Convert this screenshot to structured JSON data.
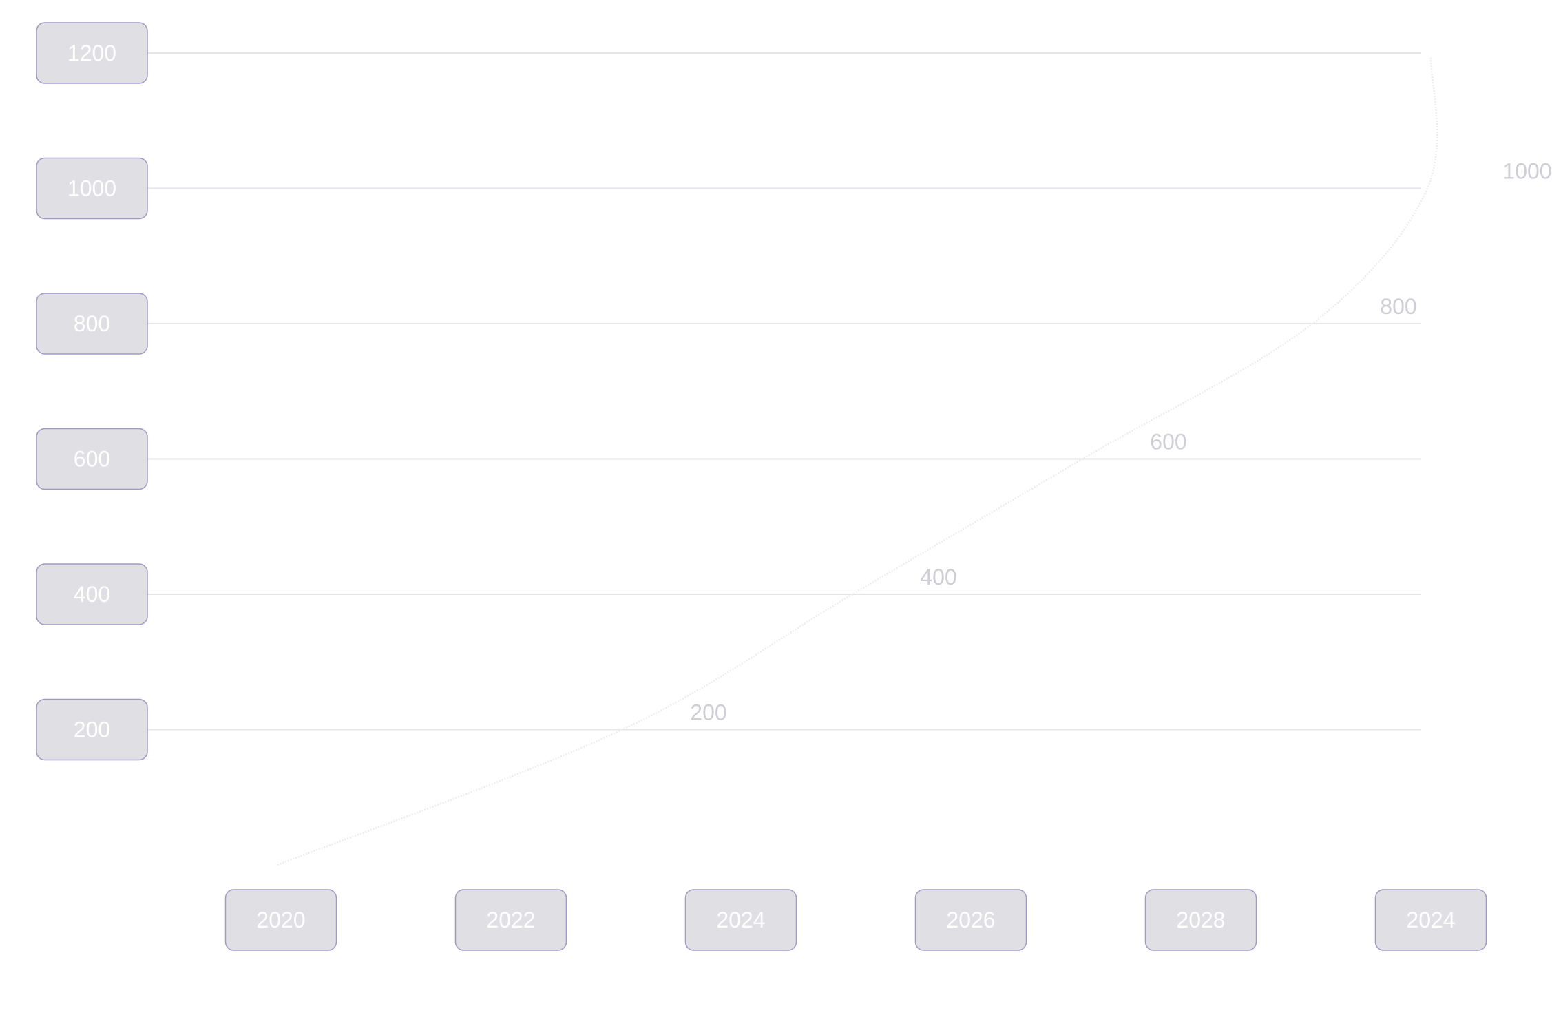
{
  "chart_data": {
    "type": "line",
    "title": "",
    "xlabel": "",
    "ylabel": "",
    "x_tick_labels": [
      "2020",
      "2022",
      "2024",
      "2026",
      "2028",
      "2024"
    ],
    "y_ticks": [
      200,
      400,
      600,
      800,
      1000,
      1200
    ],
    "ylim": [
      0,
      1200
    ],
    "grid": "horizontal",
    "series": [
      {
        "x_index": [
          0,
          1.5,
          2.5,
          3.5,
          4.5,
          5
        ],
        "values": [
          0,
          200,
          400,
          600,
          800,
          1000
        ],
        "data_labels": [
          "",
          "200",
          "400",
          "600",
          "800",
          "1000"
        ],
        "end_x_index": 5,
        "end_value": 1200
      }
    ],
    "colors": {
      "tick_box_fill": "#e0dfe4",
      "tick_box_border": "#9f9ac4",
      "tick_text": "#ffffff",
      "gridline": "#e6e6ea",
      "curve": "#ecebef",
      "data_label": "#cfced6"
    }
  }
}
